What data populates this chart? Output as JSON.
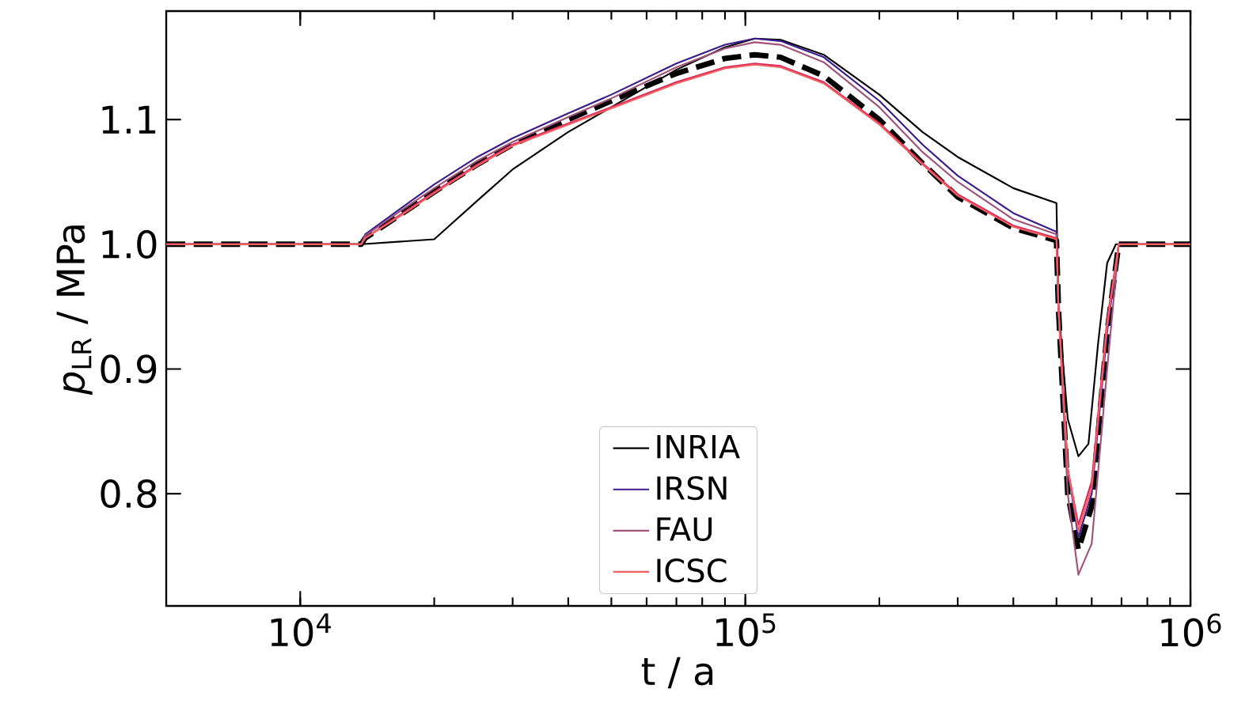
{
  "chart_data": {
    "type": "line",
    "xlabel": "t / a",
    "ylabel": "*p*$_{LR}$ / MPa",
    "log": "x",
    "xlim": [
      5000,
      1000000
    ],
    "ylim": [
      0.71,
      1.187
    ],
    "xticks": [
      {
        "value": 10000,
        "label": "10$^{4}$"
      },
      {
        "value": 100000,
        "label": "10$^{5}$"
      },
      {
        "value": 1000000,
        "label": "10$^{6}$"
      }
    ],
    "yticks": [
      {
        "value": 0.8,
        "label": "0.8"
      },
      {
        "value": 0.9,
        "label": "0.9"
      },
      {
        "value": 1.0,
        "label": "1.0"
      },
      {
        "value": 1.1,
        "label": "1.1"
      }
    ],
    "legend": "bottom",
    "grid": false,
    "marker": "none",
    "series": [
      {
        "name": "INRIA",
        "color": "#000000",
        "x": [
          5000,
          13700,
          20000,
          25000,
          30000,
          40000,
          50000,
          70000,
          90000,
          105000,
          120000,
          150000,
          200000,
          250000,
          300000,
          400000,
          500000,
          505000,
          530000,
          560000,
          590000,
          620000,
          650000,
          680000,
          1000000
        ],
        "values": [
          1.0,
          1.0,
          1.004,
          1.035,
          1.06,
          1.09,
          1.11,
          1.14,
          1.158,
          1.165,
          1.164,
          1.152,
          1.12,
          1.09,
          1.07,
          1.045,
          1.033,
          0.95,
          0.86,
          0.83,
          0.84,
          0.92,
          0.985,
          1.0,
          1.0
        ]
      },
      {
        "name": "IRSN",
        "color": "#3b1c8c",
        "x": [
          5000,
          13700,
          14000,
          17000,
          20000,
          25000,
          30000,
          40000,
          50000,
          70000,
          90000,
          105000,
          120000,
          150000,
          200000,
          250000,
          300000,
          400000,
          500000,
          505000,
          530000,
          560000,
          600000,
          650000,
          690000,
          700000,
          1000000
        ],
        "values": [
          1.0,
          1.0,
          1.008,
          1.03,
          1.048,
          1.07,
          1.085,
          1.105,
          1.12,
          1.145,
          1.16,
          1.165,
          1.163,
          1.15,
          1.115,
          1.08,
          1.055,
          1.025,
          1.01,
          0.95,
          0.82,
          0.765,
          0.8,
          0.93,
          1.0,
          1.0,
          1.0
        ]
      },
      {
        "name": "FAU",
        "color": "#a0527a",
        "x": [
          5000,
          13700,
          14000,
          17000,
          20000,
          25000,
          30000,
          40000,
          50000,
          70000,
          90000,
          105000,
          120000,
          150000,
          200000,
          250000,
          300000,
          400000,
          500000,
          505000,
          530000,
          560000,
          600000,
          650000,
          690000,
          700000,
          1000000
        ],
        "values": [
          1.0,
          1.0,
          1.007,
          1.028,
          1.045,
          1.067,
          1.082,
          1.102,
          1.117,
          1.142,
          1.157,
          1.162,
          1.16,
          1.146,
          1.11,
          1.074,
          1.05,
          1.02,
          1.008,
          0.95,
          0.8,
          0.735,
          0.76,
          0.9,
          1.0,
          1.0,
          1.0
        ]
      },
      {
        "color": "#e0245a",
        "x": [
          5000,
          13700,
          14000,
          17000,
          20000,
          25000,
          30000,
          40000,
          50000,
          70000,
          90000,
          105000,
          120000,
          150000,
          200000,
          250000,
          300000,
          400000,
          500000,
          505000,
          530000,
          560000,
          600000,
          650000,
          690000,
          700000,
          1000000
        ],
        "values": [
          1.0,
          1.0,
          1.005,
          1.025,
          1.042,
          1.064,
          1.08,
          1.097,
          1.11,
          1.13,
          1.142,
          1.145,
          1.143,
          1.13,
          1.097,
          1.065,
          1.04,
          1.015,
          1.005,
          0.95,
          0.82,
          0.775,
          0.81,
          0.94,
          1.0,
          1.0,
          1.0
        ]
      },
      {
        "name": "ICSC",
        "color": "#f06060",
        "x": [
          5000,
          13700,
          14000,
          17000,
          20000,
          25000,
          30000,
          40000,
          50000,
          70000,
          90000,
          105000,
          120000,
          150000,
          200000,
          250000,
          300000,
          400000,
          500000,
          505000,
          530000,
          560000,
          600000,
          650000,
          690000,
          700000,
          1000000
        ],
        "values": [
          1.0,
          1.0,
          1.005,
          1.024,
          1.041,
          1.063,
          1.079,
          1.096,
          1.109,
          1.129,
          1.141,
          1.144,
          1.142,
          1.129,
          1.096,
          1.064,
          1.039,
          1.014,
          1.004,
          0.95,
          0.82,
          0.77,
          0.805,
          0.935,
          1.0,
          1.0,
          1.0
        ]
      },
      {
        "color": "#000000",
        "line_style": "dashed",
        "x": [
          5000,
          13700,
          14000,
          17000,
          20000,
          25000,
          30000,
          40000,
          50000,
          70000,
          90000,
          105000,
          120000,
          150000,
          200000,
          250000,
          300000,
          400000,
          500000,
          505000,
          530000,
          560000,
          600000,
          650000,
          690000,
          700000,
          1000000
        ],
        "values": [
          1.0,
          1.0,
          1.005,
          1.025,
          1.042,
          1.064,
          1.08,
          1.1,
          1.115,
          1.137,
          1.149,
          1.152,
          1.15,
          1.135,
          1.1,
          1.065,
          1.038,
          1.013,
          1.003,
          0.95,
          0.8,
          0.755,
          0.79,
          0.93,
          1.0,
          1.0,
          1.0
        ]
      }
    ]
  }
}
